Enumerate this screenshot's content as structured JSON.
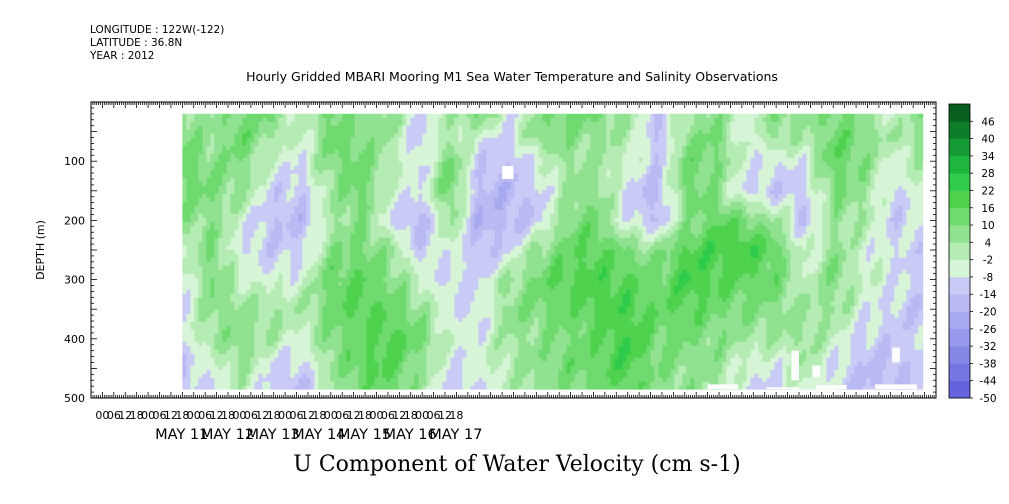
{
  "header": {
    "longitude": "LONGITUDE : 122W(-122)",
    "latitude": "LATITUDE : 36.8N",
    "year": "YEAR : 2012"
  },
  "title": "Hourly Gridded MBARI Mooring M1 Sea Water Temperature and Salinity Observations",
  "footer_title": "U Component of Water Velocity (cm s-1)",
  "colors": {
    "background": "#ffffff",
    "palette_neg": [
      "#0a0a80",
      "#1f1f9a",
      "#2d2db5",
      "#3f3fca",
      "#5252d8",
      "#6464df",
      "#7676e4",
      "#8787e8",
      "#9898ec",
      "#a9a9f0",
      "#b9b9f3",
      "#cacaf7"
    ],
    "palette_pos": [
      "#d6f5d6",
      "#b4ecb4",
      "#90e290",
      "#6fda6f",
      "#4fd34f",
      "#2ecc4a",
      "#1fb640",
      "#169a35",
      "#0e7d2a",
      "#075f20",
      "#034218"
    ]
  },
  "chart_data": {
    "type": "heatmap",
    "ylabel": "DEPTH (m)",
    "y_ticks": [
      100,
      200,
      300,
      400,
      500
    ],
    "ylim": [
      500,
      0
    ],
    "data_depth_range": [
      20,
      485
    ],
    "x_ticks_hours": [
      "00",
      "06",
      "12",
      "18",
      "00",
      "06",
      "12",
      "18",
      "00",
      "06",
      "12",
      "18",
      "00",
      "06",
      "12",
      "18",
      "00",
      "06",
      "12",
      "18",
      "00",
      "06",
      "12",
      "18",
      "00",
      "06",
      "12",
      "18",
      "00",
      "06",
      "12",
      "18"
    ],
    "day_labels": [
      "MAY 11",
      "MAY 12",
      "MAY 13",
      "MAY 14",
      "MAY 15",
      "MAY 16",
      "MAY 17"
    ],
    "time_range_hours": [
      -42,
      402
    ],
    "data_time_range_hours": [
      6,
      395
    ],
    "colorbar_labels": [
      "46",
      "40",
      "34",
      "28",
      "22",
      "16",
      "10",
      "4",
      "-2",
      "-8",
      "-14",
      "-20",
      "-26",
      "-32",
      "-38",
      "-44",
      "-50"
    ],
    "colorbar_levels": [
      -50,
      -44,
      -38,
      -32,
      -26,
      -20,
      -14,
      -8,
      -2,
      4,
      10,
      16,
      22,
      28,
      34,
      40,
      46,
      52
    ],
    "field_rows": [
      {
        "depth": 20,
        "u": [
          8,
          4,
          12,
          10,
          -6,
          14,
          6,
          8,
          -10,
          2,
          12,
          -8,
          6,
          14,
          10,
          4,
          -12,
          2,
          8,
          -6,
          10,
          4,
          12,
          6,
          -4,
          10
        ]
      },
      {
        "depth": 60,
        "u": [
          10,
          6,
          14,
          4,
          -4,
          12,
          10,
          4,
          -14,
          4,
          -6,
          -10,
          10,
          8,
          6,
          2,
          -16,
          8,
          12,
          -8,
          6,
          2,
          14,
          10,
          2,
          8
        ]
      },
      {
        "depth": 100,
        "u": [
          14,
          8,
          10,
          -4,
          -8,
          10,
          12,
          2,
          -10,
          12,
          -12,
          -14,
          -6,
          6,
          4,
          -2,
          -12,
          12,
          10,
          -4,
          -8,
          -6,
          16,
          8,
          -6,
          4
        ]
      },
      {
        "depth": 150,
        "u": [
          12,
          10,
          6,
          -10,
          -12,
          4,
          14,
          -2,
          -8,
          14,
          -16,
          -18,
          -10,
          4,
          8,
          -10,
          -18,
          14,
          6,
          -10,
          -12,
          -10,
          10,
          6,
          -10,
          -2
        ]
      },
      {
        "depth": 200,
        "u": [
          6,
          8,
          -4,
          -14,
          -16,
          2,
          10,
          -8,
          -18,
          6,
          -20,
          -16,
          -12,
          10,
          12,
          -8,
          -14,
          6,
          16,
          12,
          4,
          -14,
          6,
          2,
          -12,
          -6
        ]
      },
      {
        "depth": 250,
        "u": [
          -4,
          10,
          -8,
          -12,
          -10,
          8,
          12,
          6,
          -12,
          -4,
          -14,
          -10,
          6,
          14,
          16,
          10,
          6,
          18,
          20,
          22,
          14,
          -6,
          8,
          -4,
          -8,
          -10
        ]
      },
      {
        "depth": 300,
        "u": [
          -8,
          12,
          -2,
          -6,
          -4,
          14,
          16,
          10,
          -2,
          -10,
          -8,
          4,
          12,
          18,
          20,
          16,
          12,
          22,
          18,
          16,
          12,
          -2,
          10,
          -2,
          -6,
          -12
        ]
      },
      {
        "depth": 350,
        "u": [
          -10,
          8,
          6,
          4,
          2,
          12,
          18,
          14,
          6,
          -8,
          -10,
          8,
          10,
          14,
          18,
          20,
          14,
          16,
          12,
          10,
          8,
          4,
          6,
          -6,
          -10,
          -14
        ]
      },
      {
        "depth": 400,
        "u": [
          -6,
          4,
          10,
          2,
          -4,
          10,
          14,
          20,
          12,
          -4,
          -6,
          4,
          6,
          10,
          14,
          22,
          12,
          10,
          8,
          4,
          2,
          6,
          -2,
          -10,
          -12,
          -10
        ]
      },
      {
        "depth": 440,
        "u": [
          -12,
          -4,
          6,
          -8,
          -10,
          6,
          16,
          18,
          8,
          -8,
          -4,
          2,
          8,
          12,
          16,
          20,
          10,
          8,
          6,
          -4,
          -6,
          4,
          -8,
          -14,
          -16,
          -8
        ]
      },
      {
        "depth": 485,
        "u": [
          -14,
          -8,
          2,
          -12,
          -16,
          2,
          12,
          14,
          4,
          -12,
          -8,
          0,
          6,
          10,
          12,
          16,
          8,
          6,
          4,
          -8,
          -10,
          0,
          -10,
          -16,
          -14,
          -12
        ]
      }
    ],
    "field_times_hours": [
      6,
      22,
      37,
      53,
      69,
      84,
      100,
      115,
      131,
      147,
      162,
      178,
      193,
      209,
      224,
      240,
      256,
      271,
      287,
      302,
      318,
      333,
      349,
      364,
      380,
      395
    ],
    "missing_patches": [
      {
        "t0": 174,
        "t1": 180,
        "d0": 108,
        "d1": 130
      },
      {
        "t0": 282,
        "t1": 298,
        "d0": 477,
        "d1": 485
      },
      {
        "t0": 313,
        "t1": 330,
        "d0": 482,
        "d1": 485
      },
      {
        "t0": 326,
        "t1": 330,
        "d0": 420,
        "d1": 470
      },
      {
        "t0": 337,
        "t1": 341,
        "d0": 445,
        "d1": 465
      },
      {
        "t0": 339,
        "t1": 355,
        "d0": 478,
        "d1": 485
      },
      {
        "t0": 370,
        "t1": 392,
        "d0": 477,
        "d1": 485
      },
      {
        "t0": 379,
        "t1": 383,
        "d0": 415,
        "d1": 440
      }
    ]
  }
}
